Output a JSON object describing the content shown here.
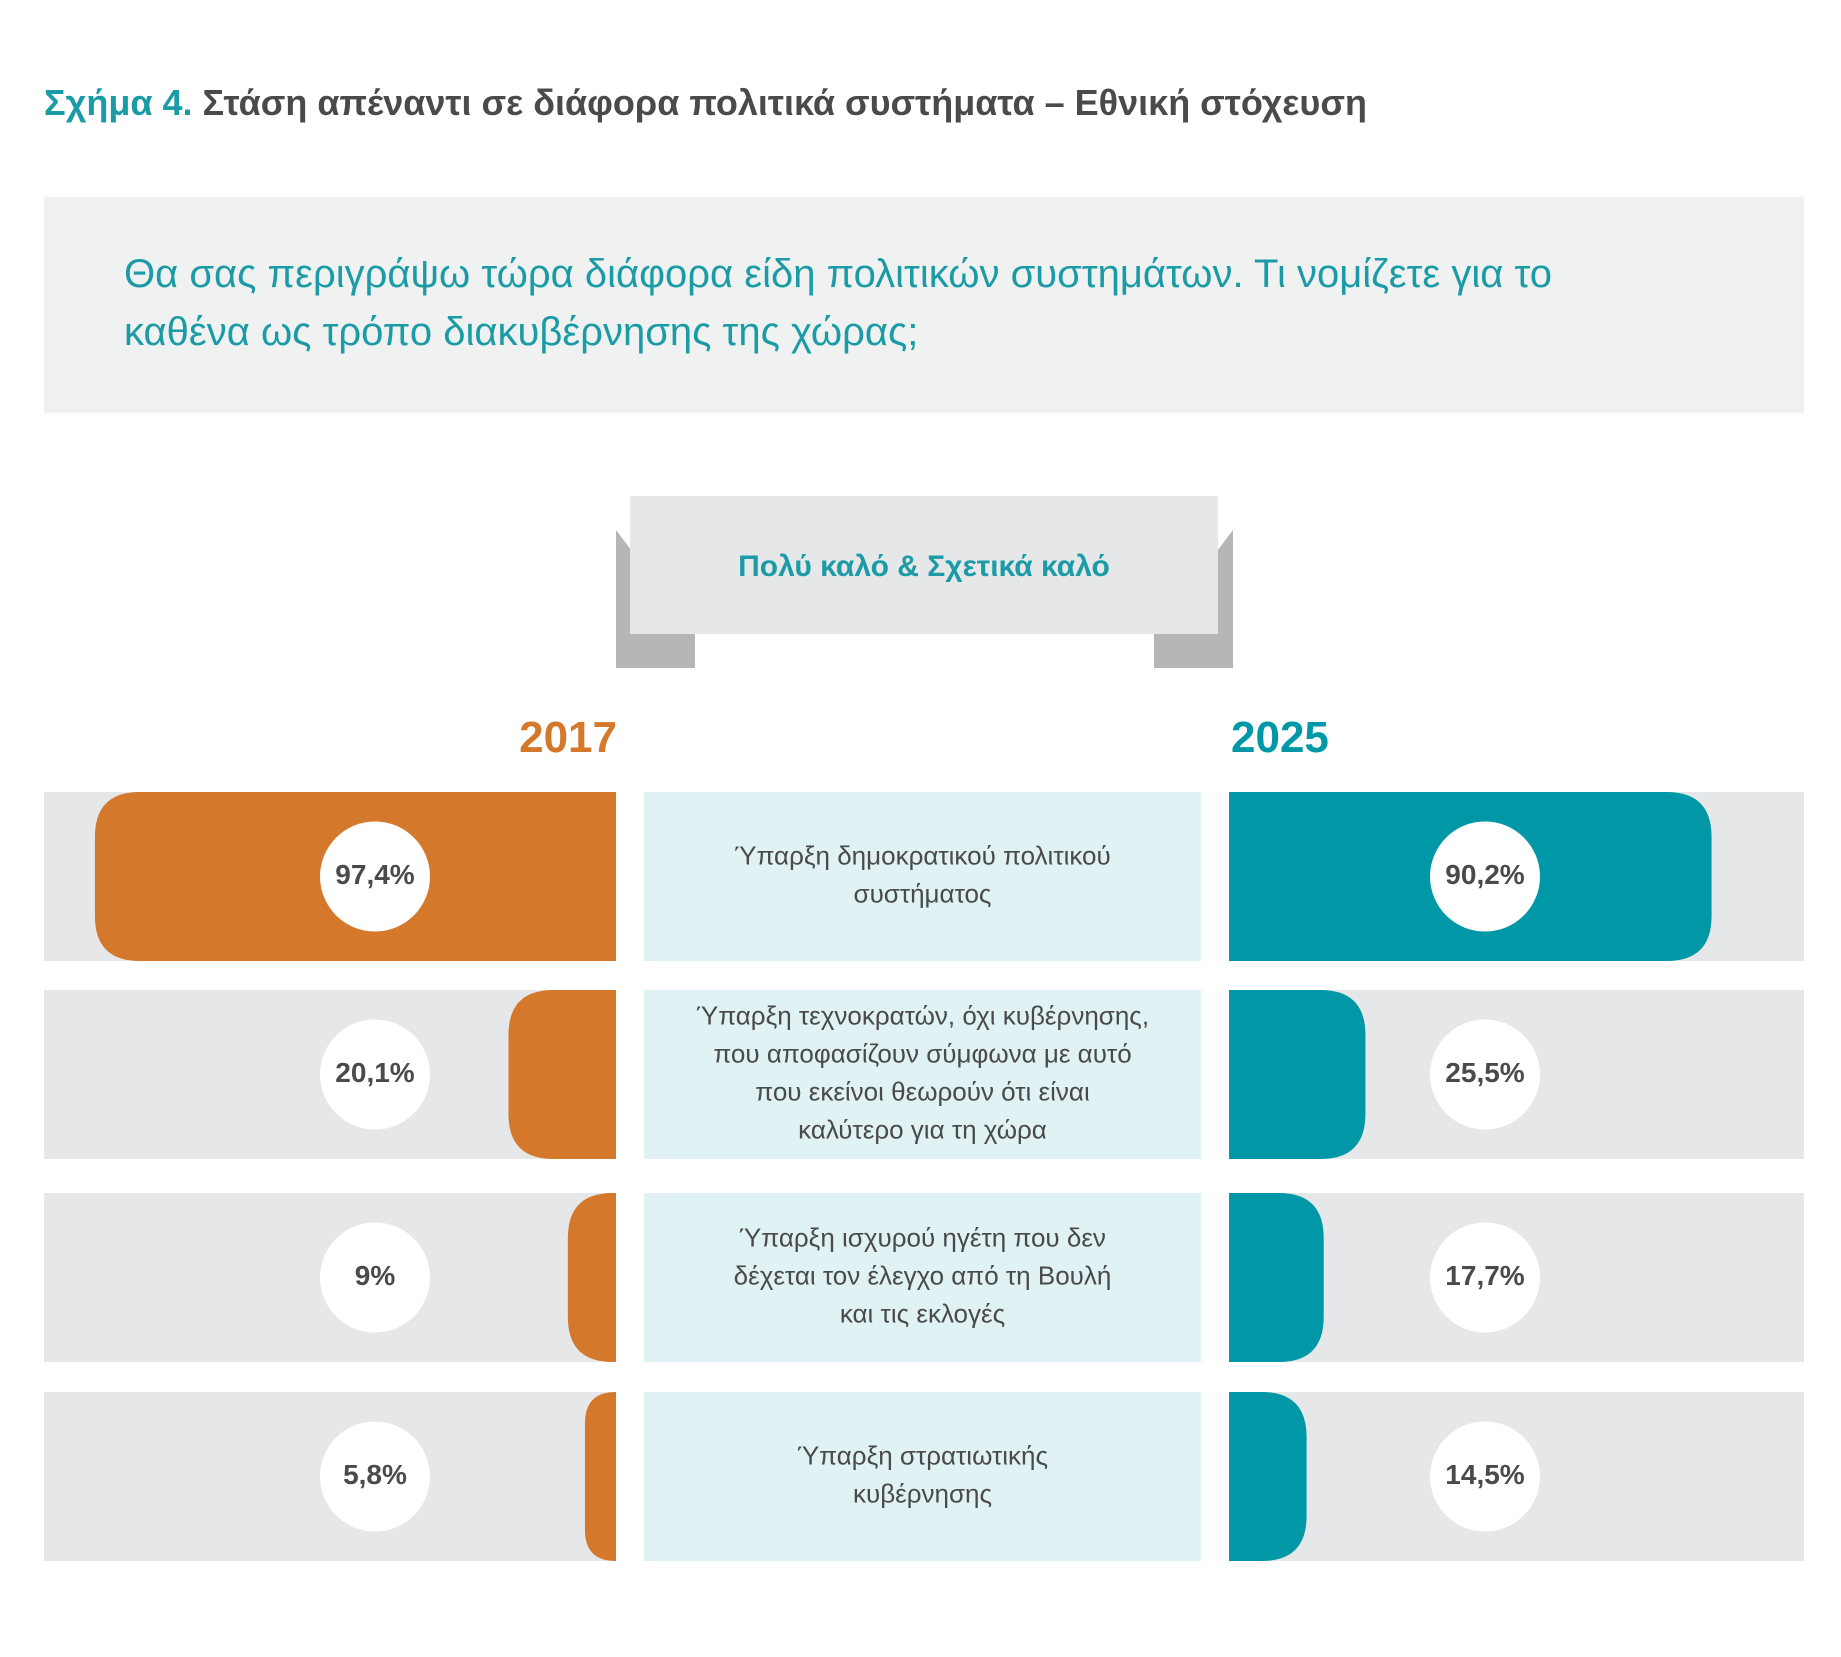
{
  "title_number": "Σχήμα 4.",
  "title_text": "Στάση απέναντι σε διάφορα πολιτικά συστήματα – Εθνική στόχευση",
  "question": "Θα σας περιγράψω τώρα διάφορα είδη πολιτικών συστημάτων. Τι νομίζετε για το καθένα ως τρόπο διακυβέρνησης της χώρας;",
  "colors": {
    "series_2017": "#d4792b",
    "series_2025": "#0098a6",
    "row_bg": "#e6e7e9",
    "label_bg": "#e0f2f3",
    "banner_bg": "#e6e7e9",
    "banner_fold": "#b5b6b8",
    "text_dark": "#4a4a4a",
    "accent": "#1a9ba6"
  },
  "chart_data": {
    "type": "bar",
    "title": "Πολύ καλό & Σχετικά καλό",
    "unit": "%",
    "categories": [
      [
        "Ύπαρξη δημοκρατικού πολιτικού",
        "συστήματος"
      ],
      [
        "Ύπαρξη τεχνοκρατών, όχι κυβέρνησης,",
        "που αποφασίζουν σύμφωνα με αυτό",
        "που εκείνοι θεωρούν ότι είναι",
        "καλύτερο για τη χώρα"
      ],
      [
        "Ύπαρξη ισχυρού ηγέτη που δεν",
        "δέχεται τον έλεγχο από τη Βουλή",
        "και τις εκλογές"
      ],
      [
        "Ύπαρξη στρατιωτικής",
        "κυβέρνησης"
      ]
    ],
    "series": [
      {
        "name": "2017",
        "values": [
          97.4,
          20.1,
          9,
          5.8
        ],
        "labels": [
          "97,4%",
          "20,1%",
          "9%",
          "5,8%"
        ]
      },
      {
        "name": "2025",
        "values": [
          90.2,
          25.5,
          17.7,
          14.5
        ],
        "labels": [
          "90,2%",
          "25,5%",
          "17,7%",
          "14,5%"
        ]
      }
    ],
    "xlim": [
      0,
      100
    ],
    "legend": "top"
  }
}
